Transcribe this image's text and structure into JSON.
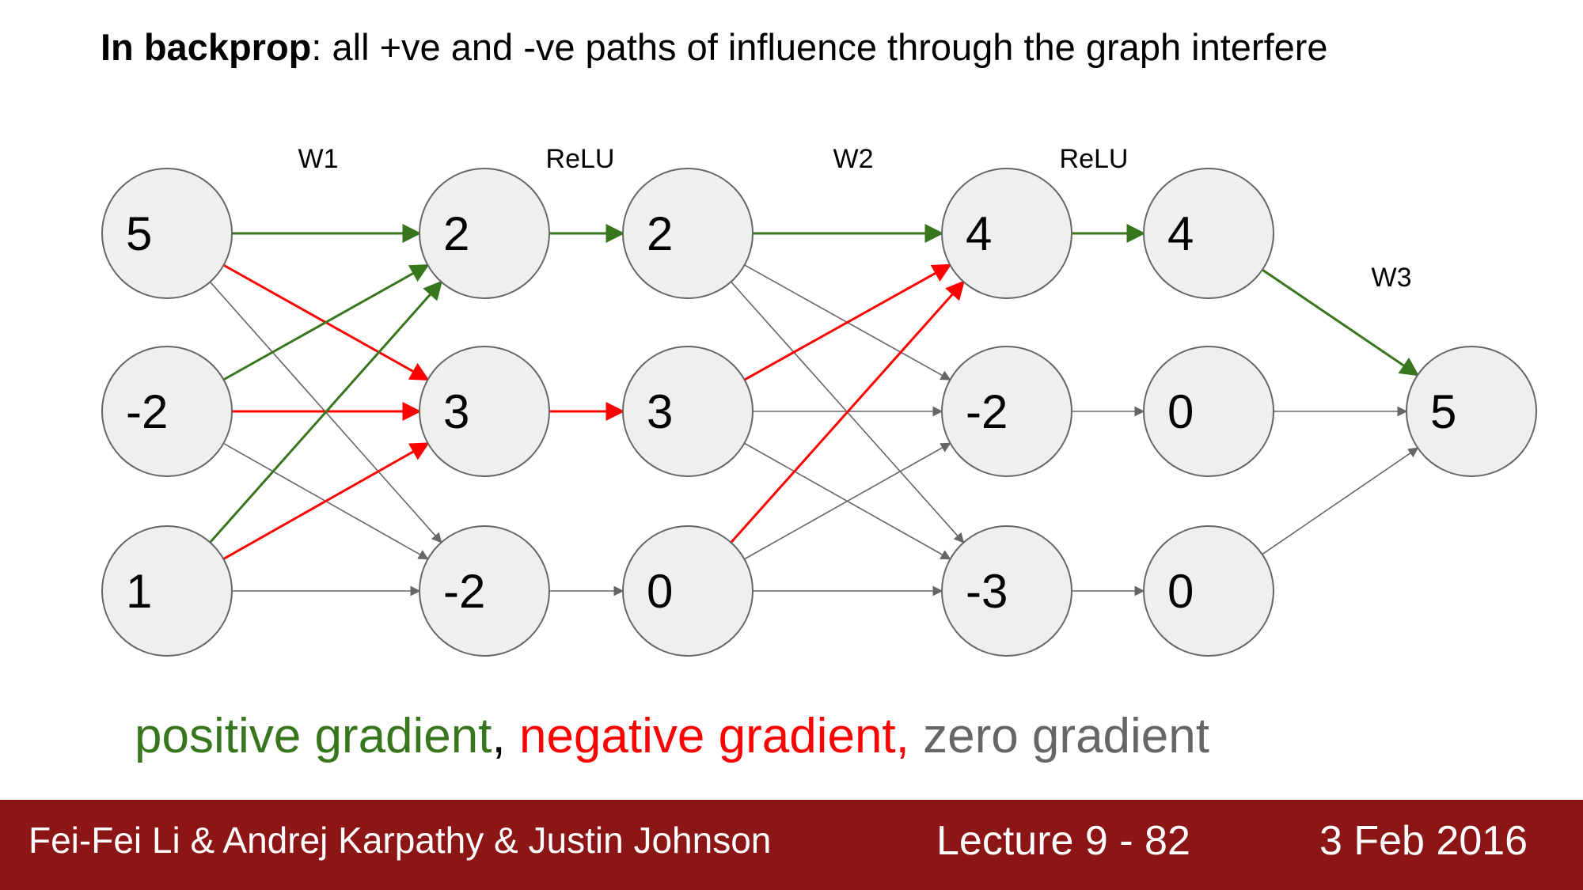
{
  "title": {
    "bold": "In backprop",
    "rest": ": all +ve and -ve paths of influence through the graph interfere"
  },
  "layer_labels": [
    "W1",
    "ReLU",
    "W2",
    "ReLU",
    "W3"
  ],
  "colors": {
    "positive": "#38761d",
    "negative": "#ff0000",
    "zero": "#666666",
    "node_fill": "#efefef",
    "footer_bg": "#8c1515"
  },
  "nodes": {
    "input": [
      "5",
      "-2",
      "1"
    ],
    "hidden1_pre": [
      "2",
      "3",
      "-2"
    ],
    "hidden1_relu": [
      "2",
      "3",
      "0"
    ],
    "hidden2_pre": [
      "4",
      "-2",
      "-3"
    ],
    "hidden2_relu": [
      "4",
      "0",
      "0"
    ],
    "output": [
      "5"
    ]
  },
  "edge_gradients": {
    "W1": [
      [
        "positive",
        "negative",
        "zero"
      ],
      [
        "positive",
        "negative",
        "zero"
      ],
      [
        "positive",
        "negative",
        "zero"
      ]
    ],
    "relu1": [
      "positive",
      "negative",
      "zero"
    ],
    "W2": [
      [
        "positive",
        "zero",
        "zero"
      ],
      [
        "negative",
        "zero",
        "zero"
      ],
      [
        "negative",
        "zero",
        "zero"
      ]
    ],
    "relu2": [
      "positive",
      "zero",
      "zero"
    ],
    "W3": [
      "positive",
      "zero",
      "zero"
    ]
  },
  "legend": {
    "positive": "positive gradient",
    "sep1": ",",
    "negative": " negative gradient,",
    "zero": " zero gradient"
  },
  "footer": {
    "authors": "Fei-Fei Li & Andrej Karpathy & Justin Johnson",
    "lecture": "Lecture 9 - 82",
    "date": "3 Feb 2016"
  }
}
